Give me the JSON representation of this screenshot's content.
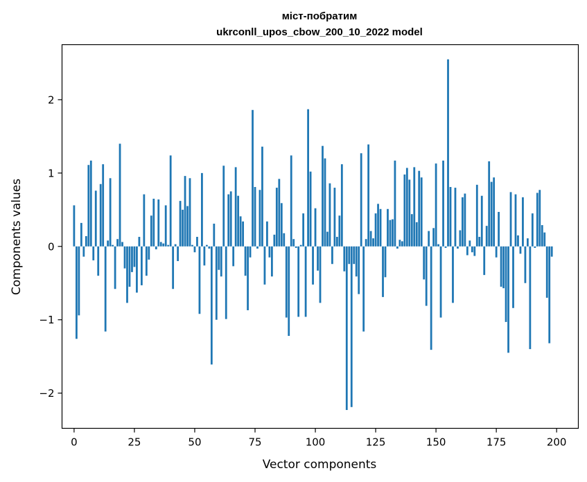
{
  "chart_data": {
    "type": "bar",
    "title": "міст-побратим",
    "subtitle": "ukrconll_upos_cbow_200_10_2022 model",
    "xlabel": "Vector components",
    "ylabel": "Components values",
    "xlim": [
      -5,
      209
    ],
    "ylim": [
      -2.48,
      2.75
    ],
    "xticks": [
      0,
      25,
      50,
      75,
      100,
      125,
      150,
      175,
      200
    ],
    "yticks": [
      -2,
      -1,
      0,
      1,
      2
    ],
    "ytick_labels": [
      "−2",
      "−1",
      "0",
      "1",
      "2"
    ],
    "bar_color": "#1f77b4",
    "grid": false,
    "values": [
      0.56,
      -1.26,
      -0.94,
      0.32,
      -0.14,
      0.14,
      1.11,
      1.17,
      -0.19,
      0.76,
      -0.4,
      0.85,
      1.12,
      -1.16,
      0.08,
      0.93,
      0.02,
      -0.58,
      0.1,
      1.4,
      0.06,
      -0.3,
      -0.77,
      -0.55,
      -0.35,
      -0.28,
      -0.63,
      0.13,
      -0.53,
      0.71,
      -0.4,
      -0.18,
      0.42,
      0.65,
      -0.04,
      0.64,
      0.06,
      0.04,
      0.56,
      0.02,
      1.24,
      -0.58,
      0.03,
      -0.2,
      0.62,
      0.5,
      0.96,
      0.55,
      0.93,
      0.02,
      -0.08,
      0.13,
      -0.92,
      1.0,
      -0.26,
      0.02,
      -0.03,
      -1.61,
      0.31,
      -1.0,
      -0.32,
      -0.41,
      1.1,
      -0.99,
      0.71,
      0.75,
      -0.27,
      1.08,
      0.69,
      0.41,
      0.34,
      -0.4,
      -0.87,
      -0.15,
      1.86,
      0.81,
      -0.03,
      0.77,
      1.36,
      -0.52,
      0.34,
      -0.15,
      -0.41,
      0.16,
      0.8,
      0.92,
      0.59,
      0.18,
      -0.97,
      -1.22,
      1.24,
      0.1,
      -0.02,
      -0.96,
      0.02,
      0.45,
      -0.96,
      1.87,
      1.02,
      -0.52,
      0.52,
      -0.33,
      -0.77,
      1.37,
      1.2,
      0.2,
      0.86,
      -0.24,
      0.8,
      0.13,
      0.42,
      1.12,
      -0.34,
      -2.23,
      -0.24,
      -2.19,
      -0.24,
      -0.41,
      -0.65,
      1.27,
      -1.16,
      0.1,
      1.39,
      0.21,
      0.11,
      0.45,
      0.58,
      0.51,
      -0.69,
      -0.42,
      0.51,
      0.36,
      0.37,
      1.17,
      -0.03,
      0.09,
      0.07,
      0.98,
      1.07,
      0.91,
      0.44,
      1.08,
      0.33,
      1.03,
      0.94,
      -0.45,
      -0.81,
      0.21,
      -1.41,
      0.25,
      1.13,
      0.03,
      -0.97,
      1.17,
      -0.02,
      2.55,
      0.81,
      -0.77,
      0.8,
      -0.03,
      0.22,
      0.67,
      0.72,
      -0.12,
      0.08,
      -0.08,
      -0.13,
      0.84,
      0.13,
      0.69,
      -0.39,
      0.28,
      1.16,
      0.88,
      0.94,
      -0.15,
      0.47,
      -0.55,
      -0.57,
      -1.03,
      -1.45,
      0.74,
      -0.84,
      0.71,
      0.15,
      -0.1,
      0.67,
      -0.5,
      0.11,
      -1.4,
      0.45,
      -0.02,
      0.73,
      0.77,
      0.29,
      0.19,
      -0.7,
      -1.32,
      -0.14
    ]
  }
}
